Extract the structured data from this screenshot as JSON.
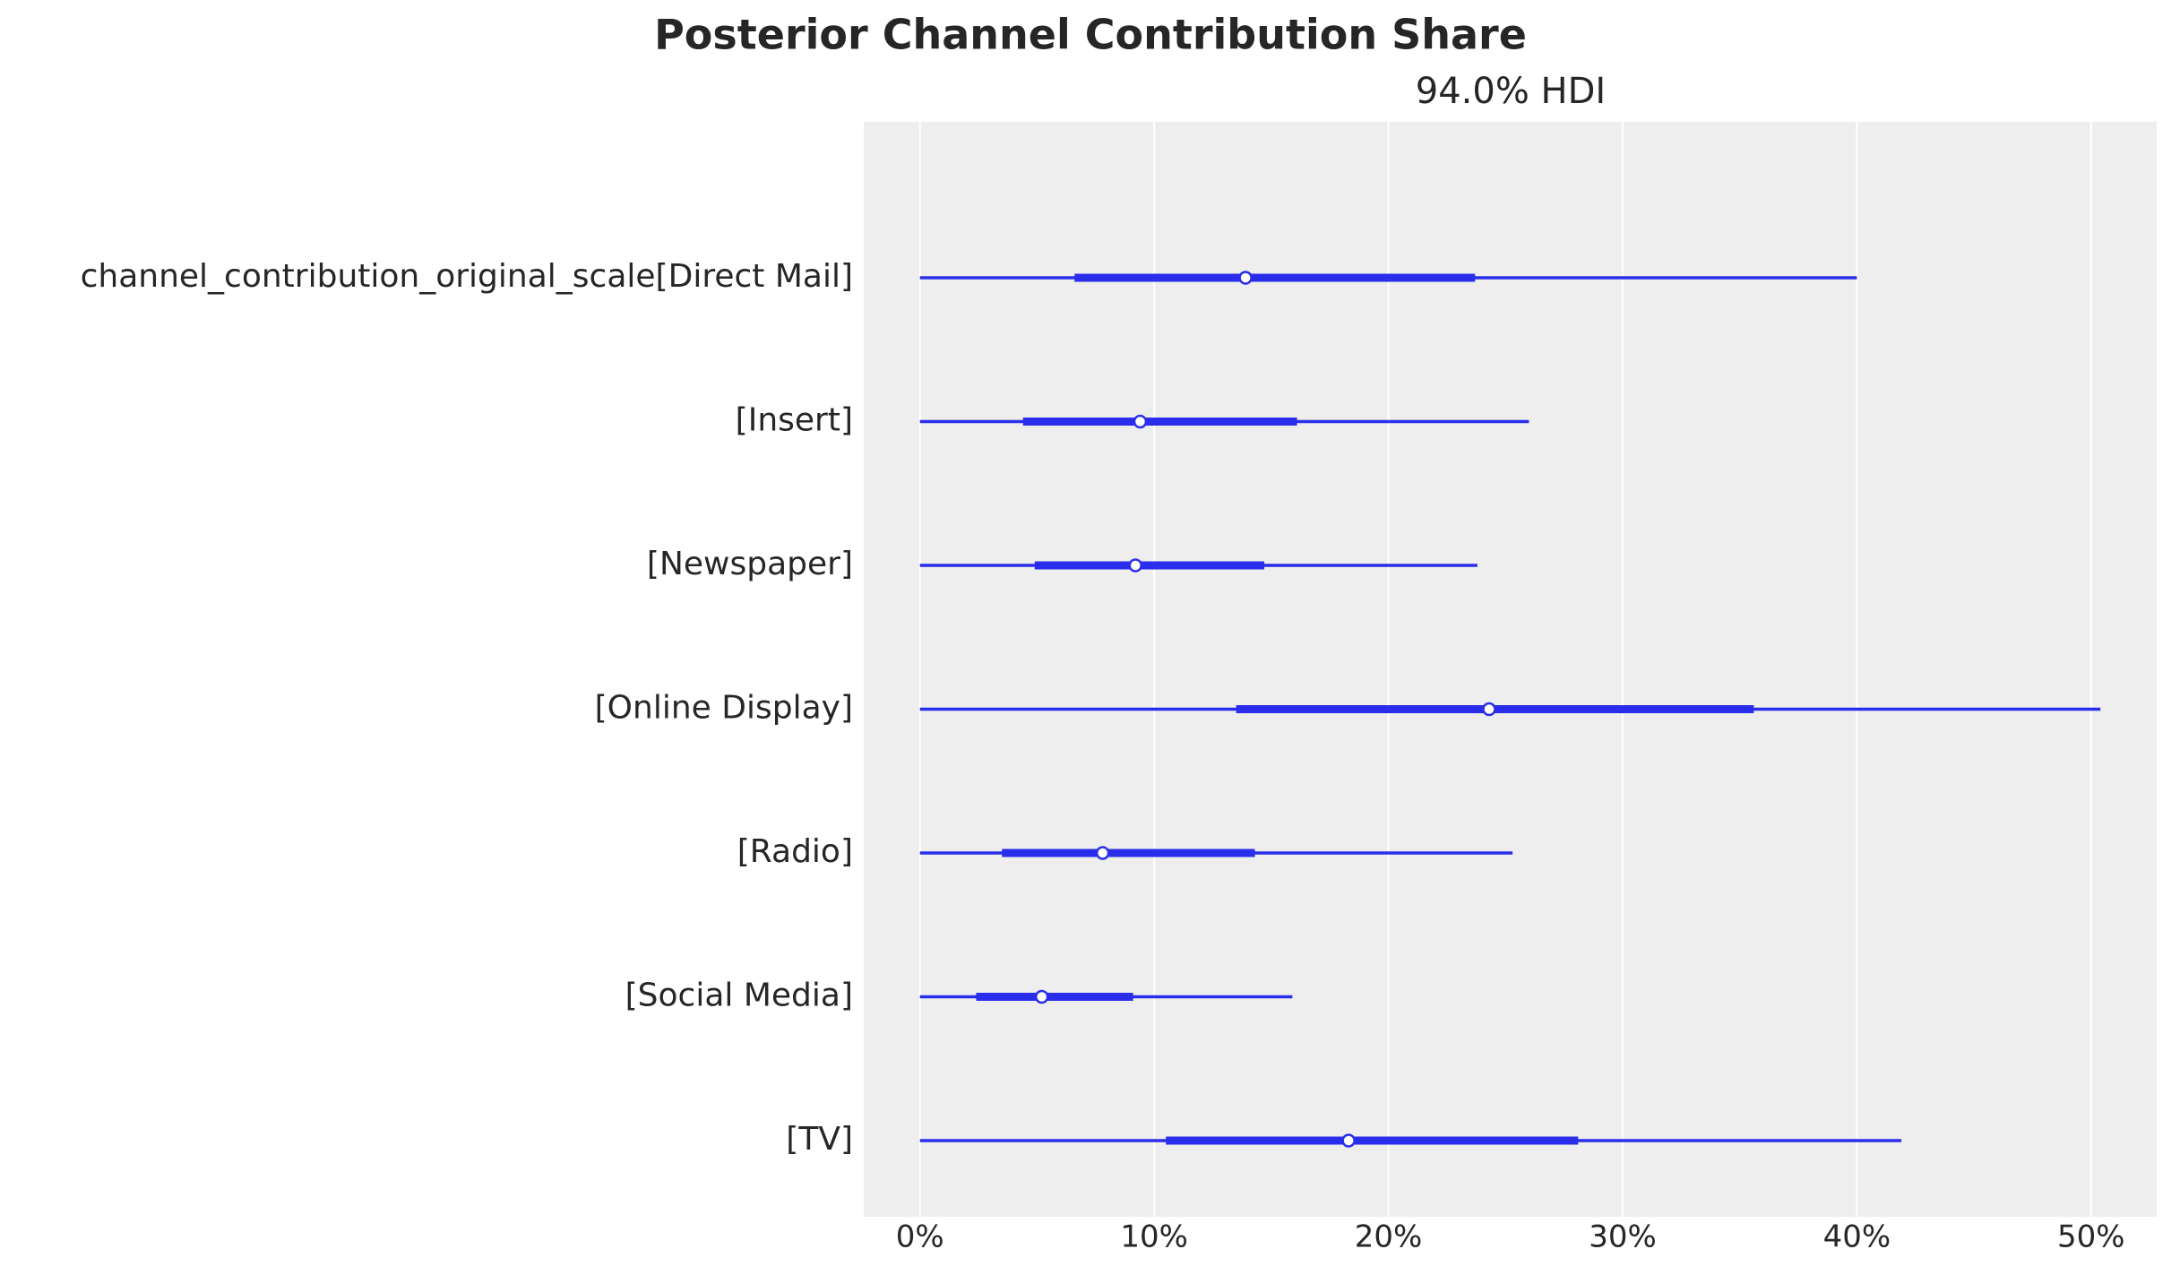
{
  "chart_data": {
    "type": "forest",
    "title": "Posterior Channel Contribution Share",
    "subtitle": "94.0% HDI",
    "categories": [
      "channel_contribution_original_scale[Direct Mail]",
      "[Insert]",
      "[Newspaper]",
      "[Online Display]",
      "[Radio]",
      "[Social Media]",
      "[TV]"
    ],
    "hdi_low": [
      0,
      0,
      0,
      0,
      0,
      0,
      0
    ],
    "hdi_high": [
      40.0,
      26.0,
      23.8,
      50.4,
      25.3,
      15.9,
      41.9
    ],
    "iqr_low": [
      6.6,
      4.4,
      4.9,
      13.5,
      3.5,
      2.4,
      10.5
    ],
    "iqr_high": [
      23.7,
      16.1,
      14.7,
      35.6,
      14.3,
      9.1,
      28.1
    ],
    "median": [
      13.9,
      9.4,
      9.2,
      24.3,
      7.8,
      5.2,
      18.3
    ],
    "color": "#2a2eec",
    "xlim": [
      -2.4,
      52.8
    ],
    "xticks": [
      {
        "value": 0,
        "label": "0%"
      },
      {
        "value": 10,
        "label": "10%"
      },
      {
        "value": 20,
        "label": "20%"
      },
      {
        "value": 30,
        "label": "30%"
      },
      {
        "value": 40,
        "label": "40%"
      },
      {
        "value": 50,
        "label": "50%"
      }
    ],
    "grid": true
  }
}
